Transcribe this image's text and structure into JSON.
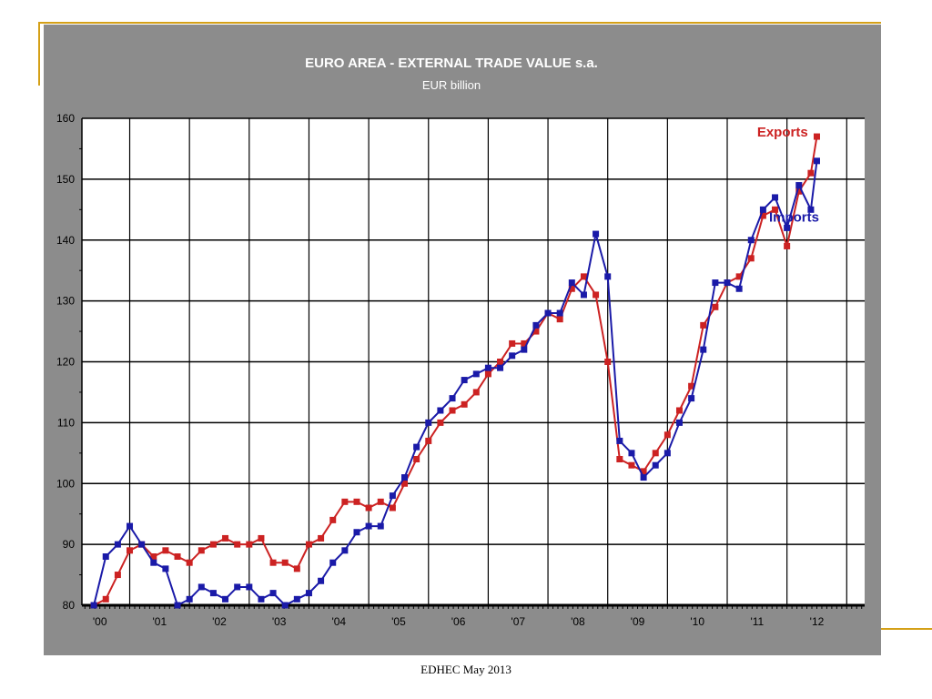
{
  "footer": "EDHEC May 2013",
  "colors": {
    "panel": "#8c8c8c",
    "plot": "#ffffff",
    "exports": "#cc2222",
    "imports": "#1a1aa8",
    "accent": "#d4a017"
  },
  "chart_data": {
    "type": "line",
    "title": "EURO AREA - EXTERNAL TRADE VALUE s.a.",
    "subtitle": "EUR billion",
    "ylim": [
      80,
      160
    ],
    "yticks": [
      "80",
      "90",
      "100",
      "110",
      "120",
      "130",
      "140",
      "150",
      "160"
    ],
    "xlim": [
      1999.7,
      2012.8
    ],
    "xtick_labels": [
      "'00",
      "'01",
      "'02",
      "'03",
      "'04",
      "'05",
      "'06",
      "'07",
      "'08",
      "'09",
      "'10",
      "'11",
      "'12"
    ],
    "grid": true,
    "series": [
      {
        "name": "Exports",
        "x": [
          1999.9,
          2000.1,
          2000.3,
          2000.5,
          2000.7,
          2000.9,
          2001.1,
          2001.3,
          2001.5,
          2001.7,
          2001.9,
          2002.1,
          2002.3,
          2002.5,
          2002.7,
          2002.9,
          2003.1,
          2003.3,
          2003.5,
          2003.7,
          2003.9,
          2004.1,
          2004.3,
          2004.5,
          2004.7,
          2004.9,
          2005.1,
          2005.3,
          2005.5,
          2005.7,
          2005.9,
          2006.1,
          2006.3,
          2006.5,
          2006.7,
          2006.9,
          2007.1,
          2007.3,
          2007.5,
          2007.7,
          2007.9,
          2008.1,
          2008.3,
          2008.5,
          2008.7,
          2008.9,
          2009.1,
          2009.3,
          2009.5,
          2009.7,
          2009.9,
          2010.1,
          2010.3,
          2010.5,
          2010.7,
          2010.9,
          2011.1,
          2011.3,
          2011.5,
          2011.7,
          2011.9,
          2012.0
        ],
        "values": [
          80,
          81,
          85,
          89,
          90,
          88,
          89,
          88,
          87,
          89,
          90,
          91,
          90,
          90,
          91,
          87,
          87,
          86,
          90,
          91,
          94,
          97,
          97,
          96,
          97,
          96,
          100,
          104,
          107,
          110,
          112,
          113,
          115,
          118,
          120,
          123,
          123,
          125,
          128,
          127,
          132,
          134,
          131,
          120,
          104,
          103,
          102,
          105,
          108,
          112,
          116,
          126,
          129,
          133,
          134,
          137,
          144,
          145,
          139,
          148,
          151,
          157
        ]
      },
      {
        "name": "Imports",
        "x": [
          1999.9,
          2000.1,
          2000.3,
          2000.5,
          2000.7,
          2000.9,
          2001.1,
          2001.3,
          2001.5,
          2001.7,
          2001.9,
          2002.1,
          2002.3,
          2002.5,
          2002.7,
          2002.9,
          2003.1,
          2003.3,
          2003.5,
          2003.7,
          2003.9,
          2004.1,
          2004.3,
          2004.5,
          2004.7,
          2004.9,
          2005.1,
          2005.3,
          2005.5,
          2005.7,
          2005.9,
          2006.1,
          2006.3,
          2006.5,
          2006.7,
          2006.9,
          2007.1,
          2007.3,
          2007.5,
          2007.7,
          2007.9,
          2008.1,
          2008.3,
          2008.5,
          2008.7,
          2008.9,
          2009.1,
          2009.3,
          2009.5,
          2009.7,
          2009.9,
          2010.1,
          2010.3,
          2010.5,
          2010.7,
          2010.9,
          2011.1,
          2011.3,
          2011.5,
          2011.7,
          2011.9,
          2012.0
        ],
        "values": [
          80,
          88,
          90,
          93,
          90,
          87,
          86,
          80,
          81,
          83,
          82,
          81,
          83,
          83,
          81,
          82,
          80,
          81,
          82,
          84,
          87,
          89,
          92,
          93,
          93,
          98,
          101,
          106,
          110,
          112,
          114,
          117,
          118,
          119,
          119,
          121,
          122,
          126,
          128,
          128,
          133,
          131,
          141,
          134,
          107,
          105,
          101,
          103,
          105,
          110,
          114,
          122,
          133,
          133,
          132,
          140,
          145,
          147,
          142,
          149,
          145,
          153
        ]
      }
    ],
    "annotations": [
      {
        "text": "Exports",
        "x": 2011.0,
        "y": 157
      },
      {
        "text": "Imports",
        "x": 2011.2,
        "y": 143
      }
    ]
  }
}
